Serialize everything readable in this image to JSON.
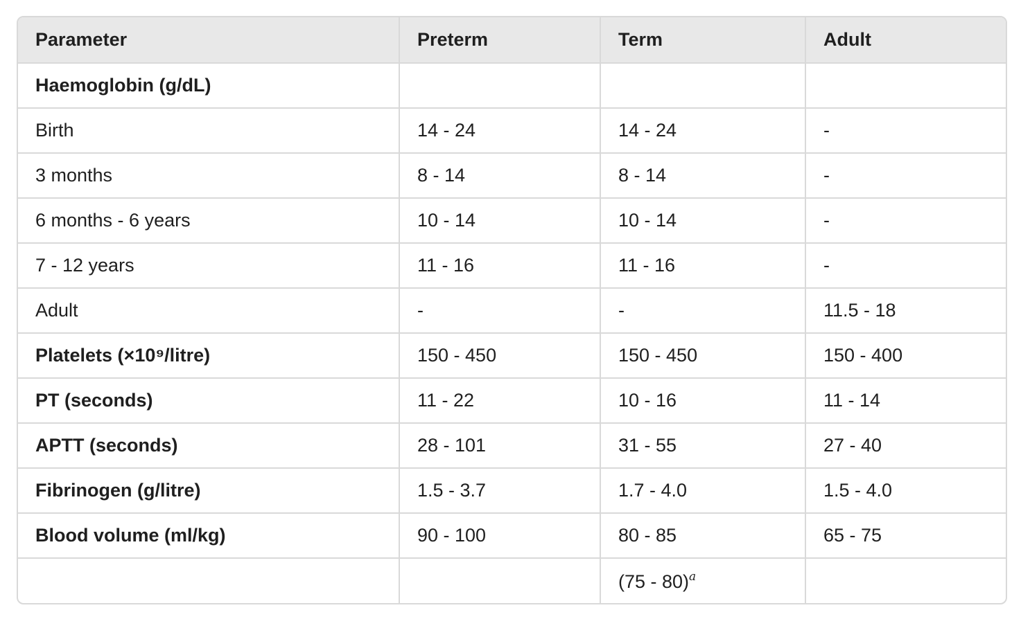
{
  "table": {
    "headers": [
      "Parameter",
      "Preterm",
      "Term",
      "Adult"
    ],
    "rows": [
      {
        "cells": [
          "Haemoglobin (g/dL)",
          "",
          "",
          ""
        ],
        "bold_label": true
      },
      {
        "cells": [
          "Birth",
          "14 - 24",
          "14 - 24",
          "-"
        ],
        "bold_label": false
      },
      {
        "cells": [
          "3 months",
          "8 - 14",
          "8 - 14",
          "-"
        ],
        "bold_label": false
      },
      {
        "cells": [
          "6 months - 6 years",
          "10 - 14",
          "10 - 14",
          "-"
        ],
        "bold_label": false
      },
      {
        "cells": [
          "7 - 12 years",
          "11 - 16",
          "11 - 16",
          "-"
        ],
        "bold_label": false
      },
      {
        "cells": [
          "Adult",
          "-",
          "-",
          "11.5 - 18"
        ],
        "bold_label": false
      },
      {
        "cells": [
          "Platelets (×10⁹/litre)",
          "150 - 450",
          "150 - 450",
          "150 - 400"
        ],
        "bold_label": true
      },
      {
        "cells": [
          "PT (seconds)",
          "11 - 22",
          "10 - 16",
          "11 - 14"
        ],
        "bold_label": true
      },
      {
        "cells": [
          "APTT (seconds)",
          "28 - 101",
          "31 - 55",
          "27 - 40"
        ],
        "bold_label": true
      },
      {
        "cells": [
          "Fibrinogen (g/litre)",
          "1.5 - 3.7",
          "1.7 - 4.0",
          "1.5 - 4.0"
        ],
        "bold_label": true
      },
      {
        "cells": [
          "Blood volume (ml/kg)",
          "90 - 100",
          "80 - 85",
          "65 - 75"
        ],
        "bold_label": true
      },
      {
        "cells": [
          "",
          "",
          "(75 - 80)",
          ""
        ],
        "bold_label": false,
        "term_superscript": "a"
      }
    ]
  },
  "colors": {
    "header_bg": "#e8e8e8",
    "border": "#d9d9d9",
    "text": "#1f1f1f"
  }
}
